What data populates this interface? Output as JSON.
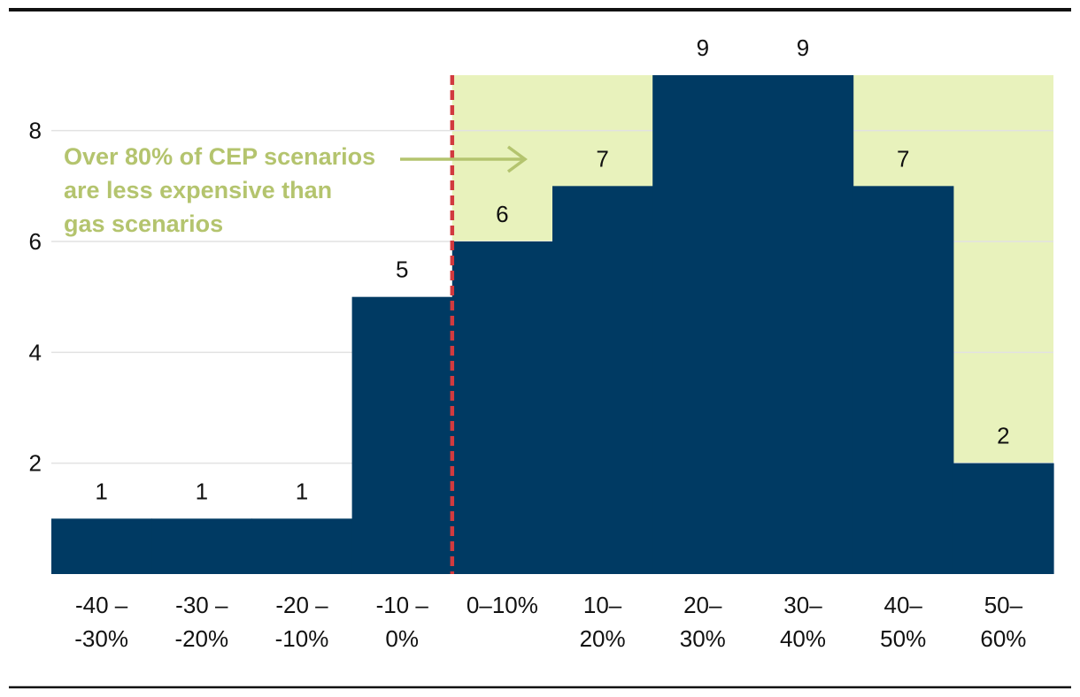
{
  "chart_data": {
    "type": "bar",
    "categories": [
      [
        "-40 –",
        "-30%"
      ],
      [
        "-30 –",
        "-20%"
      ],
      [
        "-20 –",
        "-10%"
      ],
      [
        "-10 –",
        "0%"
      ],
      [
        "0–10%"
      ],
      [
        "10–",
        "20%"
      ],
      [
        "20–",
        "30%"
      ],
      [
        "30–",
        "40%"
      ],
      [
        "40–",
        "50%"
      ],
      [
        "50–",
        "60%"
      ]
    ],
    "values": [
      1,
      1,
      1,
      5,
      6,
      7,
      9,
      9,
      7,
      2
    ],
    "ylim": [
      0,
      9
    ],
    "yticks": [
      2,
      4,
      6,
      8
    ],
    "highlight_from_category_index": 4,
    "annotation": {
      "lines": [
        "Over 80% of CEP scenarios",
        "are less expensive than",
        "gas scenarios"
      ]
    },
    "grid": true,
    "xlabel": "",
    "ylabel": "",
    "title": ""
  },
  "colors": {
    "bar": "#003a63",
    "highlight": "#e8f2bc",
    "annotation": "#b4c46e",
    "divider": "#d13a3f",
    "grid": "#e2e2e2",
    "rule": "#111111"
  }
}
